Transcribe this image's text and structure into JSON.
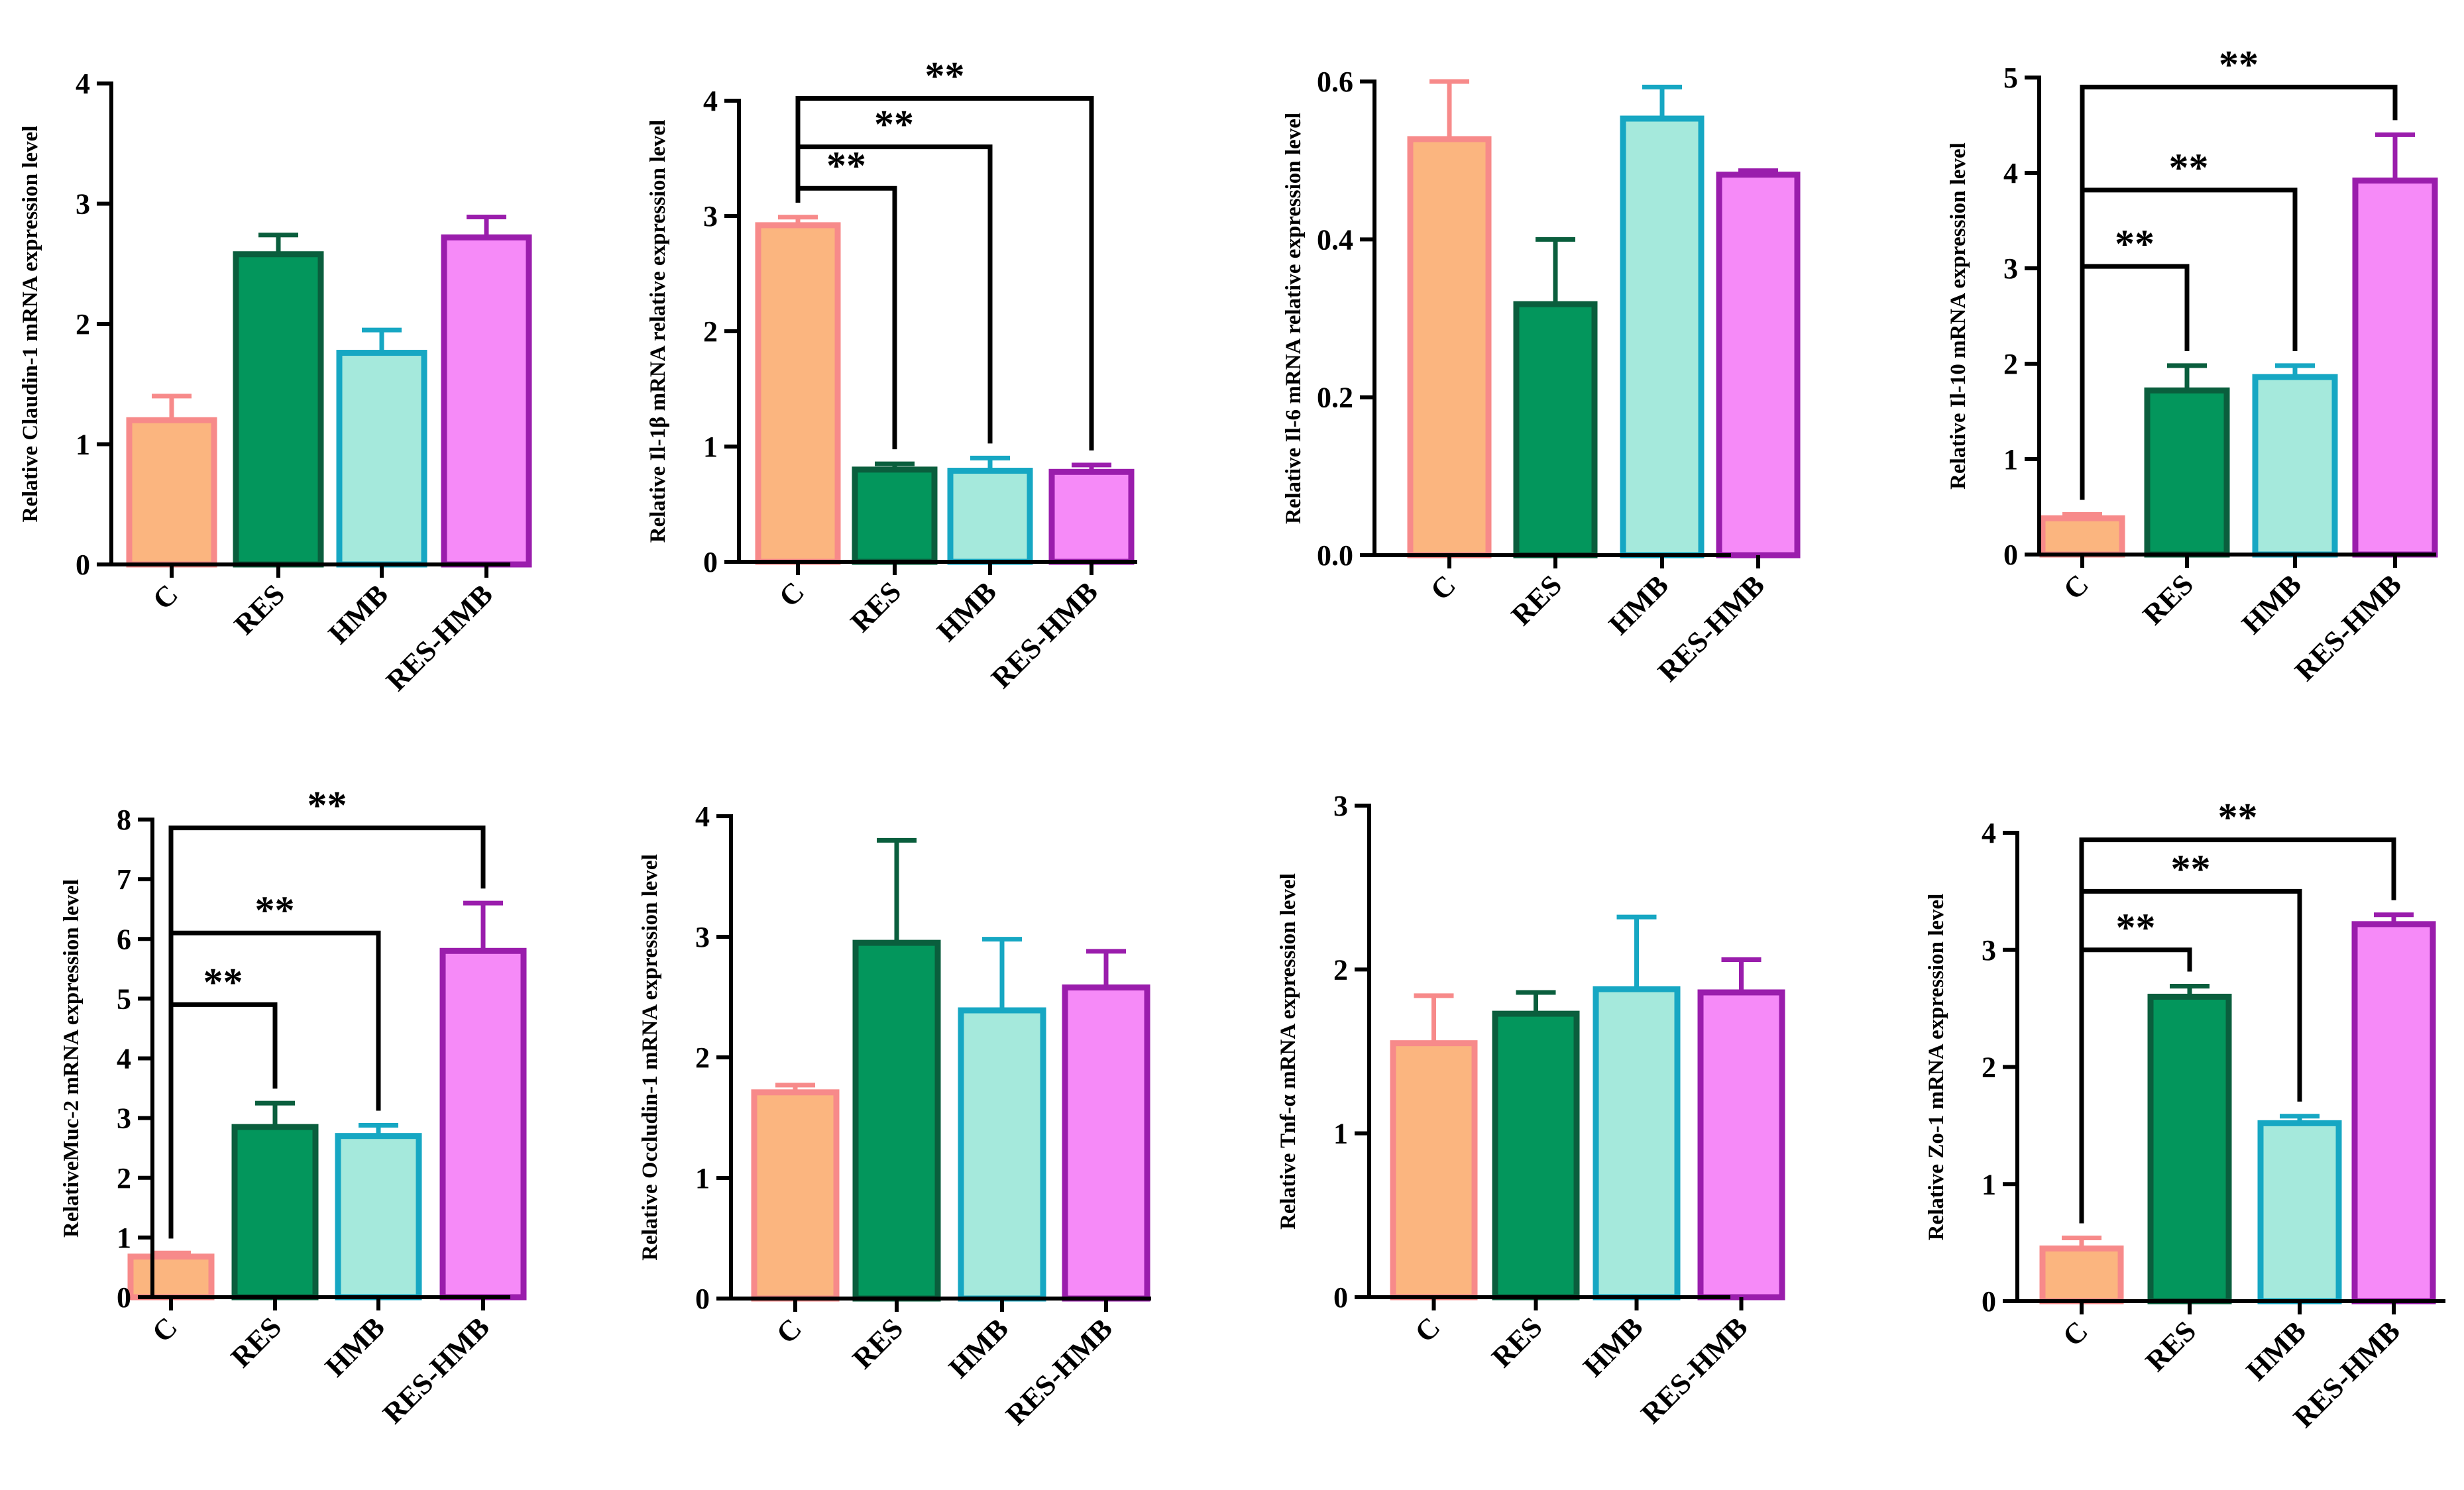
{
  "colors": {
    "C": {
      "fill": "#fbb57f",
      "edge": "#f78a8a"
    },
    "RES": {
      "fill": "#03965c",
      "edge": "#0a5e3d"
    },
    "HMB": {
      "fill": "#a5e9dc",
      "edge": "#16a7c3"
    },
    "RES-HMB": {
      "fill": "#f68af8",
      "edge": "#9a1dac"
    }
  },
  "chart_data": [
    {
      "type": "bar",
      "categories": [
        "C",
        "RES",
        "HMB",
        "RES-HMB"
      ],
      "values": [
        1.2,
        2.58,
        1.76,
        2.72
      ],
      "errors": [
        0.2,
        0.16,
        0.19,
        0.17
      ],
      "ylabel": "Relative Claudin-1 mRNA  expression level",
      "ylim": [
        0,
        4
      ],
      "yticks": [
        0,
        1,
        2,
        3,
        4
      ],
      "ytick_labels": [
        "0",
        "1",
        "2",
        "3",
        "4"
      ],
      "significance": []
    },
    {
      "type": "bar",
      "categories": [
        "C",
        "RES",
        "HMB",
        "RES-HMB"
      ],
      "values": [
        2.92,
        0.8,
        0.79,
        0.78
      ],
      "errors": [
        0.07,
        0.05,
        0.11,
        0.06
      ],
      "ylabel": "Relative Il-1β mRNA relative expression level",
      "ylim": [
        0,
        4
      ],
      "yticks": [
        0,
        1,
        2,
        3,
        4
      ],
      "ytick_labels": [
        "0",
        "1",
        "2",
        "3",
        "4"
      ],
      "significance": [
        {
          "from": 0,
          "to": 1,
          "level": 3.24,
          "label": "**"
        },
        {
          "from": 0,
          "to": 2,
          "level": 3.6,
          "label": "**"
        },
        {
          "from": 0,
          "to": 3,
          "level": 4.02,
          "label": "**"
        }
      ]
    },
    {
      "type": "bar",
      "categories": [
        "C",
        "RES",
        "HMB",
        "RES-HMB"
      ],
      "values": [
        0.527,
        0.318,
        0.553,
        0.482
      ],
      "errors": [
        0.073,
        0.082,
        0.04,
        0.005
      ],
      "ylabel": "Relative Il-6 mRNA relative expression level",
      "ylim": [
        0,
        0.6
      ],
      "yticks": [
        0,
        0.2,
        0.4,
        0.6
      ],
      "ytick_labels": [
        "0.0",
        "0.2",
        "0.4",
        "0.6"
      ],
      "significance": []
    },
    {
      "type": "bar",
      "categories": [
        "C",
        "RES",
        "HMB",
        "RES-HMB"
      ],
      "values": [
        0.38,
        1.72,
        1.86,
        3.92
      ],
      "errors": [
        0.04,
        0.26,
        0.12,
        0.48
      ],
      "ylabel": "Relative Il-10 mRNA  expression level",
      "ylim": [
        0,
        5
      ],
      "yticks": [
        0,
        1,
        2,
        3,
        4,
        5
      ],
      "ytick_labels": [
        "0",
        "1",
        "2",
        "3",
        "4",
        "5"
      ],
      "significance": [
        {
          "from": 0,
          "to": 1,
          "level": 3.02,
          "label": "**"
        },
        {
          "from": 0,
          "to": 2,
          "level": 3.82,
          "label": "**"
        },
        {
          "from": 0,
          "to": 3,
          "level": 4.9,
          "label": "**"
        }
      ]
    },
    {
      "type": "bar",
      "categories": [
        "C",
        "RES",
        "HMB",
        "RES-HMB"
      ],
      "values": [
        0.68,
        2.85,
        2.7,
        5.8
      ],
      "errors": [
        0.06,
        0.4,
        0.18,
        0.8
      ],
      "ylabel": "RelativeMuc-2 mRNA  expression level",
      "ylim": [
        0,
        8
      ],
      "yticks": [
        0,
        1,
        2,
        3,
        4,
        5,
        6,
        7,
        8
      ],
      "ytick_labels": [
        "0",
        "1",
        "2",
        "3",
        "4",
        "5",
        "6",
        "7",
        "8"
      ],
      "significance": [
        {
          "from": 0,
          "to": 1,
          "level": 4.9,
          "label": "**"
        },
        {
          "from": 0,
          "to": 2,
          "level": 6.1,
          "label": "**"
        },
        {
          "from": 0,
          "to": 3,
          "level": 7.86,
          "label": "**"
        }
      ]
    },
    {
      "type": "bar",
      "categories": [
        "C",
        "RES",
        "HMB",
        "RES-HMB"
      ],
      "values": [
        1.71,
        2.95,
        2.39,
        2.58
      ],
      "errors": [
        0.06,
        0.85,
        0.59,
        0.3
      ],
      "ylabel": "Relative Occludin-1 mRNA expression level",
      "ylim": [
        0,
        4
      ],
      "yticks": [
        0,
        1,
        2,
        3,
        4
      ],
      "ytick_labels": [
        "0",
        "1",
        "2",
        "3",
        "4"
      ],
      "significance": []
    },
    {
      "type": "bar",
      "categories": [
        "C",
        "RES",
        "HMB",
        "RES-HMB"
      ],
      "values": [
        1.55,
        1.73,
        1.88,
        1.86
      ],
      "errors": [
        0.29,
        0.13,
        0.44,
        0.2
      ],
      "ylabel": "Relative Tnf-α mRNA  expression level",
      "ylim": [
        0,
        3
      ],
      "yticks": [
        0,
        1,
        2,
        3
      ],
      "ytick_labels": [
        "0",
        "1",
        "2",
        "3"
      ],
      "significance": []
    },
    {
      "type": "bar",
      "categories": [
        "C",
        "RES",
        "HMB",
        "RES-HMB"
      ],
      "values": [
        0.45,
        2.6,
        1.52,
        3.22
      ],
      "errors": [
        0.09,
        0.09,
        0.06,
        0.08
      ],
      "ylabel": "Relative Zo-1 mRNA  expression level",
      "ylim": [
        0,
        4
      ],
      "yticks": [
        0,
        1,
        2,
        3,
        4
      ],
      "ytick_labels": [
        "0",
        "1",
        "2",
        "3",
        "4"
      ],
      "significance": [
        {
          "from": 0,
          "to": 1,
          "level": 3.0,
          "label": "**"
        },
        {
          "from": 0,
          "to": 2,
          "level": 3.5,
          "label": "**"
        },
        {
          "from": 0,
          "to": 3,
          "level": 3.94,
          "label": "**"
        }
      ]
    }
  ]
}
